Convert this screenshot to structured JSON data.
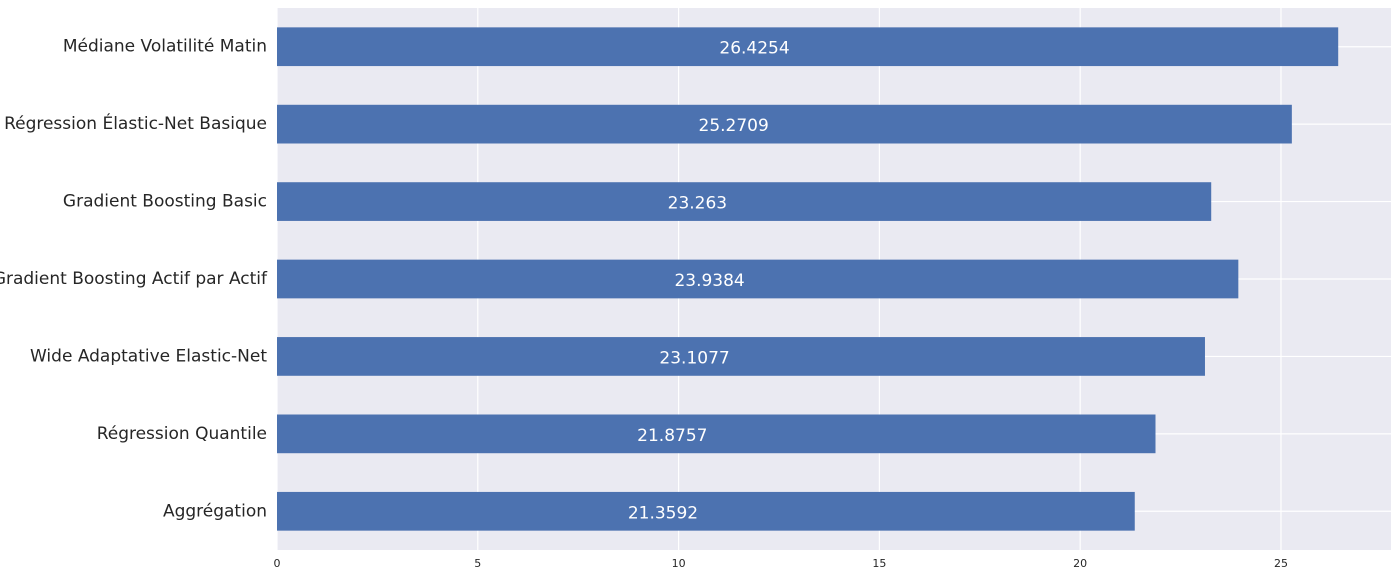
{
  "chart_data": {
    "type": "barh",
    "categories": [
      "Médiane Volatilité Matin",
      "Régression Élastic-Net Basique",
      "Gradient Boosting Basic",
      "Gradient Boosting Actif par Actif",
      "Wide Adaptative Elastic-Net",
      "Régression Quantile",
      "Aggrégation"
    ],
    "values": [
      26.4254,
      25.2709,
      23.263,
      23.9384,
      23.1077,
      21.8757,
      21.3592
    ],
    "color": "#4c72b0",
    "xlim": [
      0,
      27.74
    ],
    "xticks": [
      0,
      5,
      10,
      15,
      20,
      25
    ],
    "grid": true
  }
}
